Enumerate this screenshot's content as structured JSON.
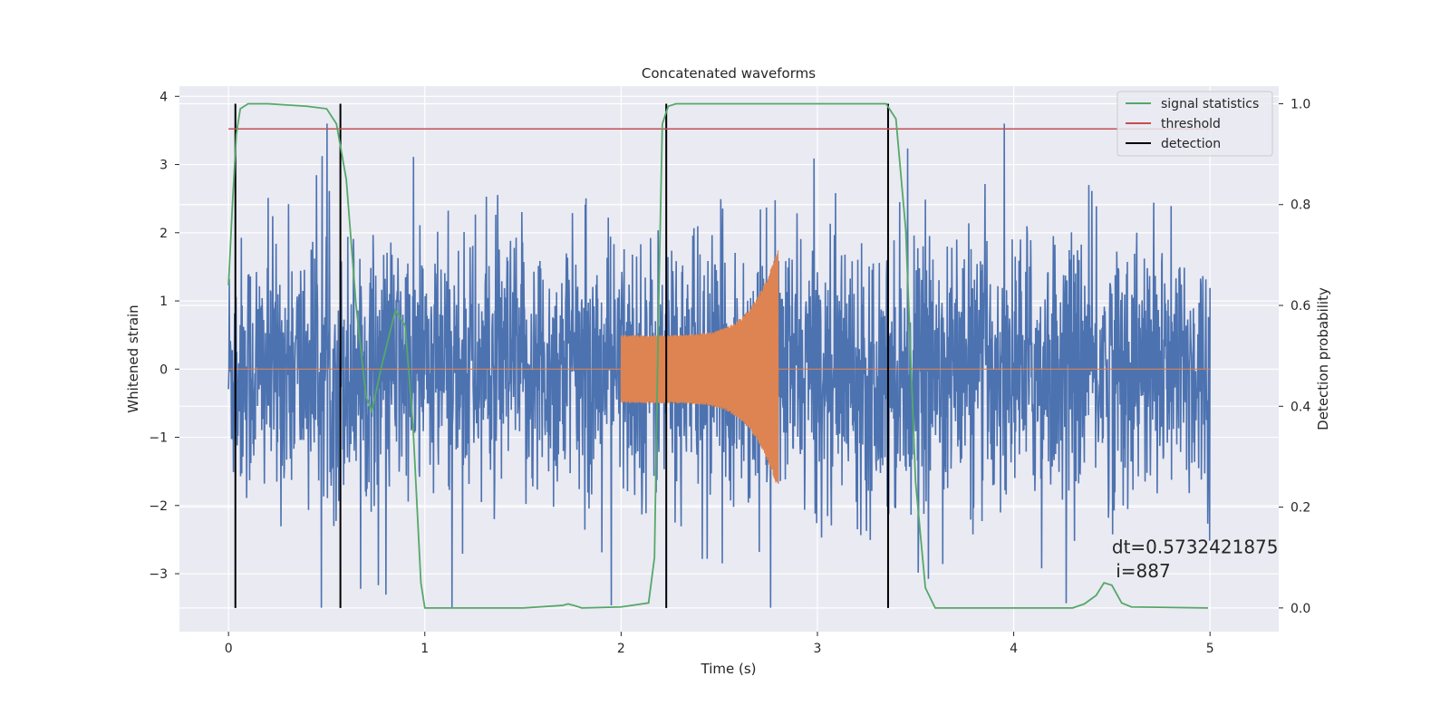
{
  "chart_data": {
    "type": "line",
    "title": "Concatenated waveforms",
    "xlabel": "Time (s)",
    "ylabel": "Whitened strain",
    "ylabel_right": "Detection probability",
    "xlim": [
      -0.25,
      5.35
    ],
    "ylim": [
      -3.85,
      4.15
    ],
    "ylim_right": [
      -0.047,
      1.035
    ],
    "x_ticks": [
      0,
      1,
      2,
      3,
      4,
      5
    ],
    "y_ticks": [
      -3,
      -2,
      -1,
      0,
      1,
      2,
      3,
      4
    ],
    "y_ticks_right": [
      0.0,
      0.2,
      0.4,
      0.6,
      0.8,
      1.0
    ],
    "x_tick_labels": [
      "0",
      "1",
      "2",
      "3",
      "4",
      "5"
    ],
    "y_tick_labels": [
      "−3",
      "−2",
      "−1",
      "0",
      "1",
      "2",
      "3",
      "4"
    ],
    "y_tick_labels_right": [
      "0.0",
      "0.2",
      "0.4",
      "0.6",
      "0.8",
      "1.0"
    ],
    "grid": true,
    "legend_position": "top-right",
    "colors": {
      "background": "#eaeaf2",
      "grid": "#ffffff",
      "strain": "#4c72b0",
      "injection": "#dd8452",
      "statistics": "#55a868",
      "threshold": "#c44e52",
      "detection": "#000000"
    },
    "series": [
      {
        "name": "signal statistics",
        "axis": "right",
        "x": [
          0.0,
          0.02,
          0.04,
          0.06,
          0.1,
          0.2,
          0.4,
          0.5,
          0.55,
          0.6,
          0.65,
          0.7,
          0.73,
          0.78,
          0.85,
          0.9,
          0.94,
          0.98,
          1.0,
          1.05,
          1.5,
          1.7,
          1.73,
          1.76,
          1.8,
          2.0,
          2.14,
          2.17,
          2.19,
          2.21,
          2.24,
          2.28,
          2.35,
          3.0,
          3.35,
          3.4,
          3.45,
          3.5,
          3.55,
          3.6,
          4.3,
          4.36,
          4.42,
          4.46,
          4.5,
          4.55,
          4.6,
          4.99
        ],
        "y": [
          0.64,
          0.8,
          0.94,
          0.99,
          1.0,
          1.0,
          0.995,
          0.99,
          0.96,
          0.85,
          0.6,
          0.42,
          0.39,
          0.48,
          0.59,
          0.56,
          0.36,
          0.05,
          0.0,
          0.0,
          0.0,
          0.005,
          0.008,
          0.005,
          0.0,
          0.002,
          0.01,
          0.1,
          0.58,
          0.96,
          0.995,
          1.0,
          1.0,
          1.0,
          1.0,
          0.97,
          0.75,
          0.25,
          0.04,
          0.0,
          0.0,
          0.008,
          0.025,
          0.05,
          0.045,
          0.01,
          0.002,
          0.0
        ]
      },
      {
        "name": "threshold",
        "axis": "right",
        "x": [
          0.0,
          5.0
        ],
        "y": [
          0.95,
          0.95
        ]
      },
      {
        "name": "detection",
        "axis": "right",
        "x": [
          0.035,
          0.57,
          2.23,
          3.36
        ],
        "y_range": [
          0.0,
          1.0
        ]
      }
    ],
    "strain": {
      "axis": "left",
      "x_range": [
        0.0,
        5.0
      ],
      "y_range": [
        -3.5,
        3.6
      ]
    },
    "injection": {
      "axis": "left",
      "x_range": [
        2.0,
        2.8
      ],
      "amplitude_start": 0.5,
      "amplitude_end": 1.8
    },
    "legend": [
      "signal statistics",
      "threshold",
      "detection"
    ],
    "annotations": [
      {
        "text": "dt=0.5732421875",
        "x": 4.5,
        "y": -2.7
      },
      {
        "text": "i=887",
        "x": 4.52,
        "y": -3.05
      }
    ]
  }
}
